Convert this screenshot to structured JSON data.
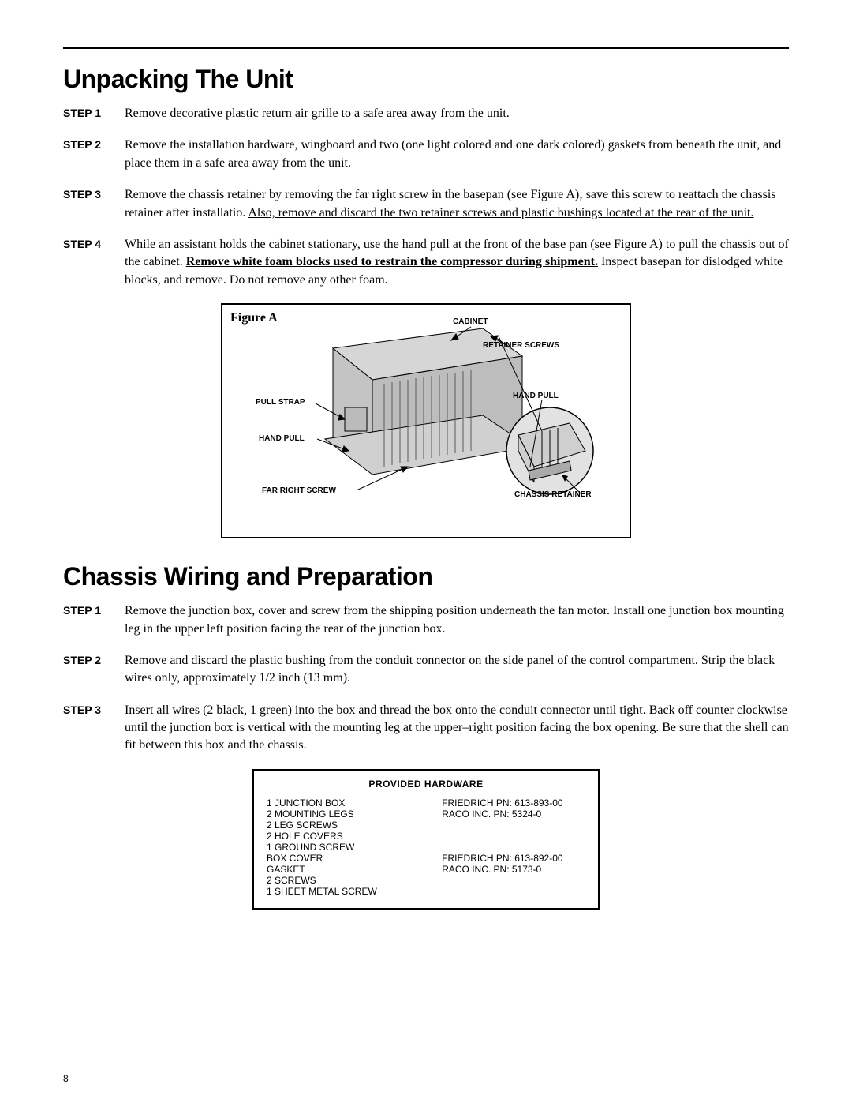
{
  "page_number": "8",
  "section1": {
    "heading": "Unpacking The Unit",
    "steps": [
      {
        "label": "STEP 1",
        "html": "Remove decorative plastic return air grille to a safe area away from the unit."
      },
      {
        "label": "STEP 2",
        "html": "Remove the installation hardware, wingboard and two (one light colored and one dark colored) gaskets from beneath the unit, and place them in a safe area away from the unit."
      },
      {
        "label": "STEP 3",
        "html": "Remove the chassis retainer by removing the far right screw in the basepan (see Figure A); save this screw to reattach the chassis retainer after installatio.  <span class=\"under\">Also, remove and discard the two retainer screws and plastic bushings located at the rear of the unit.</span>"
      },
      {
        "label": "STEP 4",
        "html": "While an assistant holds the cabinet stationary, use the hand pull at the front of the base pan (see Figure A) to pull the chassis out of the cabinet.  <span class=\"underbold\">Remove white foam blocks used to restrain the compressor during shipment.</span>  Inspect basepan for dislodged white blocks, and remove.  Do not remove any other foam."
      }
    ]
  },
  "figureA": {
    "title": "Figure  A",
    "labels": {
      "cabinet": "CABINET",
      "retainer_screws": "RETAINER SCREWS",
      "hand_pull_r": "HAND PULL",
      "pull_strap": "PULL STRAP",
      "hand_pull_l": "HAND PULL",
      "far_right_screw": "FAR RIGHT SCREW",
      "chassis_retainer": "CHASSIS RETAINER"
    },
    "colors": {
      "unit_fill": "#c4c4c4",
      "unit_shadow": "#9a9a9a",
      "line": "#000000"
    }
  },
  "section2": {
    "heading": "Chassis Wiring and Preparation",
    "steps": [
      {
        "label": "STEP 1",
        "html": "Remove the junction box, cover and screw from the shipping position underneath the fan motor.  Install one junction box mounting leg in the upper left position facing the rear of the junction box."
      },
      {
        "label": "STEP 2",
        "html": "Remove and discard the plastic bushing from the conduit connector on the side panel of the control compartment. Strip the black wires only, approximately 1/2 inch (13 mm)."
      },
      {
        "label": "STEP 3",
        "html": "Insert all wires (2 black, 1 green) into the box and thread the box onto the conduit connector until tight.  Back off counter clockwise until the junction box is vertical with the mounting leg at the upper–right position facing the box opening.  Be sure that the shell can fit between this box and the chassis."
      }
    ]
  },
  "hardware": {
    "title": "PROVIDED HARDWARE",
    "rows": [
      {
        "c1": "1 JUNCTION BOX",
        "c2": "FRIEDRICH PN: 613-893-00"
      },
      {
        "c1": "2 MOUNTING LEGS",
        "c2": "RACO INC. PN: 5324-0"
      },
      {
        "c1": "2 LEG SCREWS",
        "c2": ""
      },
      {
        "c1": "2 HOLE COVERS",
        "c2": ""
      },
      {
        "c1": "1 GROUND SCREW",
        "c2": ""
      },
      {
        "c1": "BOX COVER",
        "c2": "FRIEDRICH PN:  613-892-00"
      },
      {
        "c1": "GASKET",
        "c2": "RACO INC. PN: 5173-0"
      },
      {
        "c1": "2 SCREWS",
        "c2": ""
      },
      {
        "c1": "1 SHEET METAL SCREW",
        "c2": ""
      }
    ]
  }
}
